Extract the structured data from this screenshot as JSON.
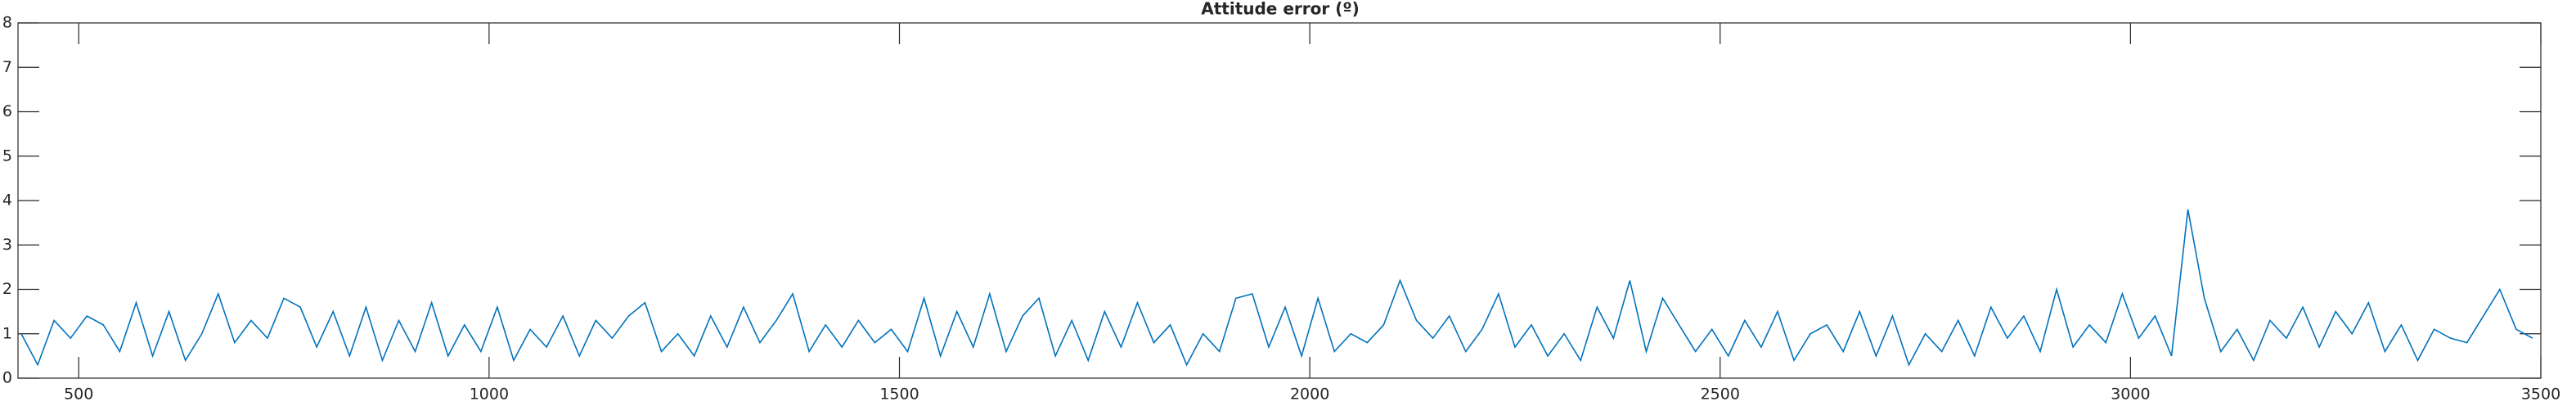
{
  "chart_data": {
    "type": "line",
    "title": "Attitude error (º)",
    "x": [
      430,
      450,
      470,
      490,
      510,
      530,
      550,
      570,
      590,
      610,
      630,
      650,
      670,
      690,
      710,
      730,
      750,
      770,
      790,
      810,
      830,
      850,
      870,
      890,
      910,
      930,
      950,
      970,
      990,
      1010,
      1030,
      1050,
      1070,
      1090,
      1110,
      1130,
      1150,
      1170,
      1190,
      1210,
      1230,
      1250,
      1270,
      1290,
      1310,
      1330,
      1350,
      1370,
      1390,
      1410,
      1430,
      1450,
      1470,
      1490,
      1510,
      1530,
      1550,
      1570,
      1590,
      1610,
      1630,
      1650,
      1670,
      1690,
      1710,
      1730,
      1750,
      1770,
      1790,
      1810,
      1830,
      1850,
      1870,
      1890,
      1910,
      1930,
      1950,
      1970,
      1990,
      2010,
      2030,
      2050,
      2070,
      2090,
      2110,
      2130,
      2150,
      2170,
      2190,
      2210,
      2230,
      2250,
      2270,
      2290,
      2310,
      2330,
      2350,
      2370,
      2390,
      2410,
      2430,
      2450,
      2470,
      2490,
      2510,
      2530,
      2550,
      2570,
      2590,
      2610,
      2630,
      2650,
      2670,
      2690,
      2710,
      2730,
      2750,
      2770,
      2790,
      2810,
      2830,
      2850,
      2870,
      2890,
      2910,
      2930,
      2950,
      2970,
      2990,
      3010,
      3030,
      3050,
      3070,
      3090,
      3110,
      3130,
      3150,
      3170,
      3190,
      3210,
      3230,
      3250,
      3270,
      3290,
      3310,
      3330,
      3350,
      3370,
      3390,
      3410,
      3430,
      3450,
      3470,
      3490
    ],
    "values": [
      1.0,
      0.3,
      1.3,
      0.9,
      1.4,
      1.2,
      0.6,
      1.7,
      0.5,
      1.5,
      0.4,
      1.0,
      1.9,
      0.8,
      1.3,
      0.9,
      1.8,
      1.6,
      0.7,
      1.5,
      0.5,
      1.6,
      0.4,
      1.3,
      0.6,
      1.7,
      0.5,
      1.2,
      0.6,
      1.6,
      0.4,
      1.1,
      0.7,
      1.4,
      0.5,
      1.3,
      0.9,
      1.4,
      1.7,
      0.6,
      1.0,
      0.5,
      1.4,
      0.7,
      1.6,
      0.8,
      1.3,
      1.9,
      0.6,
      1.2,
      0.7,
      1.3,
      0.8,
      1.1,
      0.6,
      1.8,
      0.5,
      1.5,
      0.7,
      1.9,
      0.6,
      1.4,
      1.8,
      0.5,
      1.3,
      0.4,
      1.5,
      0.7,
      1.7,
      0.8,
      1.2,
      0.3,
      1.0,
      0.6,
      1.8,
      1.9,
      0.7,
      1.6,
      0.5,
      1.8,
      0.6,
      1.0,
      0.8,
      1.2,
      2.2,
      1.3,
      0.9,
      1.4,
      0.6,
      1.1,
      1.9,
      0.7,
      1.2,
      0.5,
      1.0,
      0.4,
      1.6,
      0.9,
      2.2,
      0.6,
      1.8,
      1.2,
      0.6,
      1.1,
      0.5,
      1.3,
      0.7,
      1.5,
      0.4,
      1.0,
      1.2,
      0.6,
      1.5,
      0.5,
      1.4,
      0.3,
      1.0,
      0.6,
      1.3,
      0.5,
      1.6,
      0.9,
      1.4,
      0.6,
      2.0,
      0.7,
      1.2,
      0.8,
      1.9,
      0.9,
      1.4,
      0.5,
      3.8,
      1.8,
      0.6,
      1.1,
      0.4,
      1.3,
      0.9,
      1.6,
      0.7,
      1.5,
      1.0,
      1.7,
      0.6,
      1.2,
      0.4,
      1.1,
      0.9,
      0.8,
      1.4,
      2.0,
      1.1,
      0.9
    ],
    "color": "#0072bd",
    "xlim": [
      426,
      3500
    ],
    "xticks": [
      500,
      1000,
      1500,
      2000,
      2500,
      3000,
      3500
    ],
    "ylim": [
      0,
      8
    ],
    "yticks": [
      0,
      1,
      2,
      3,
      4,
      5,
      6,
      7,
      8
    ]
  }
}
